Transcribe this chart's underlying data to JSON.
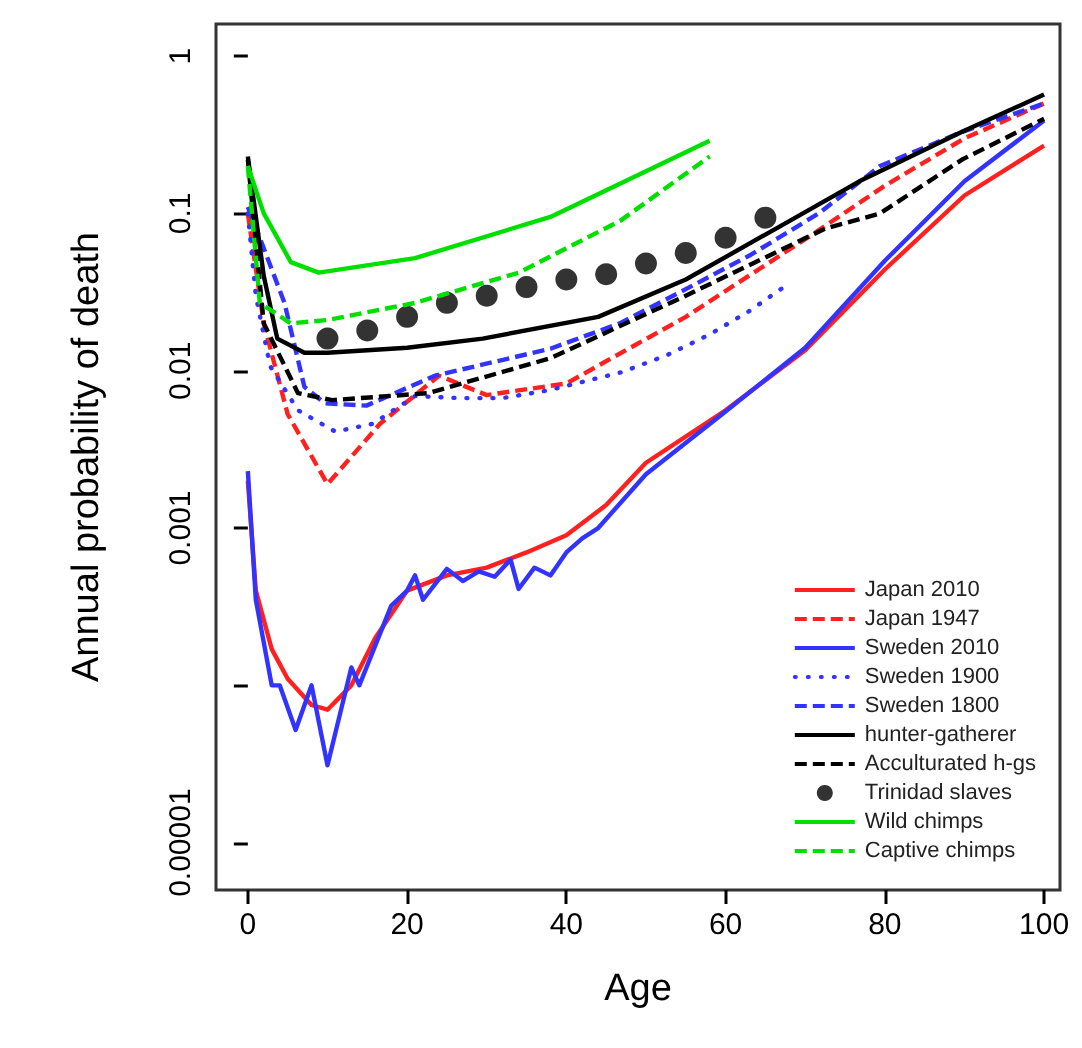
{
  "chart_data": {
    "type": "line",
    "xlabel": "Age",
    "ylabel": "Annual probability of death",
    "log": "y",
    "grid": false,
    "legend": "bottom right",
    "marker": "none",
    "xlim": [
      -4,
      102
    ],
    "xticks": [
      0,
      20,
      40,
      60,
      80,
      100
    ],
    "ylim": [
      5e-06,
      1.6
    ],
    "yticks": [
      1,
      0.1,
      0.01,
      0.001,
      {
        "value": 0.0001,
        "label": null
      },
      {
        "value": 1e-05,
        "label": "0.00001"
      }
    ],
    "series": [
      {
        "name": "Japan 2010",
        "color": "#ff2020",
        "line_style": "solid",
        "x": [
          0,
          1,
          3,
          5,
          8,
          10,
          13,
          16,
          20,
          25,
          30,
          35,
          40,
          45,
          50,
          60,
          70,
          80,
          90,
          100
        ],
        "values": [
          0.002,
          0.0004,
          0.00017,
          0.00011,
          7.5e-05,
          7e-05,
          0.0001,
          0.0002,
          0.0004,
          0.0005,
          0.00056,
          0.0007,
          0.0009,
          0.0014,
          0.0026,
          0.0056,
          0.0135,
          0.044,
          0.13,
          0.27
        ]
      },
      {
        "name": "Japan 1947",
        "color": "#ff2020",
        "line_style": "dashed",
        "x": [
          0,
          2,
          5,
          10,
          16.6,
          24,
          30,
          40,
          55,
          71,
          80,
          90,
          100
        ],
        "values": [
          0.1,
          0.02,
          0.0053,
          0.0019,
          0.0046,
          0.0093,
          0.007,
          0.0083,
          0.022,
          0.074,
          0.15,
          0.3,
          0.5
        ]
      },
      {
        "name": "Sweden 2010",
        "color": "#3333ff",
        "line_style": "solid",
        "x": [
          0,
          1,
          3,
          4,
          6,
          8,
          10,
          13,
          14,
          18,
          20,
          21,
          22,
          25,
          27,
          29,
          31,
          33,
          34,
          36,
          38,
          40,
          42,
          44,
          50,
          60,
          70,
          80,
          90,
          100
        ],
        "values": [
          0.0023,
          0.00035,
          0.0001,
          0.0001,
          5.2e-05,
          0.0001,
          3.1e-05,
          0.00013,
          0.0001,
          0.00032,
          0.0004,
          0.0005,
          0.00035,
          0.00055,
          0.00046,
          0.00053,
          0.00049,
          0.00063,
          0.00041,
          0.00056,
          0.0005,
          0.0007,
          0.00086,
          0.001,
          0.0022,
          0.0055,
          0.014,
          0.05,
          0.16,
          0.39
        ]
      },
      {
        "name": "Sweden 1900",
        "color": "#3333ff",
        "line_style": "dotted",
        "x": [
          0,
          1,
          2.8,
          6.3,
          11,
          15.7,
          21,
          26.5,
          32,
          37.7,
          47,
          52.7,
          58,
          63,
          68
        ],
        "values": [
          0.1,
          0.03,
          0.0107,
          0.0056,
          0.0041,
          0.0046,
          0.0069,
          0.0067,
          0.0067,
          0.0075,
          0.0098,
          0.0126,
          0.017,
          0.024,
          0.036
        ]
      },
      {
        "name": "Sweden 1800",
        "color": "#3333ff",
        "line_style": "dashed",
        "x": [
          0,
          2,
          4.6,
          7.1,
          9.7,
          14.9,
          23.5,
          31,
          38,
          46.7,
          55,
          63,
          71.7,
          79.4,
          89.7,
          100
        ],
        "values": [
          0.11,
          0.06,
          0.027,
          0.0079,
          0.0062,
          0.006,
          0.0093,
          0.0114,
          0.0138,
          0.02,
          0.033,
          0.054,
          0.1,
          0.2,
          0.33,
          0.5
        ]
      },
      {
        "name": "hunter-gatherer",
        "color": "#000000",
        "line_style": "solid",
        "x": [
          0,
          2,
          3.7,
          7.1,
          10,
          20,
          29.5,
          44,
          55,
          66.5,
          76.8,
          89.7,
          100
        ],
        "values": [
          0.23,
          0.04,
          0.016,
          0.013,
          0.013,
          0.014,
          0.016,
          0.022,
          0.038,
          0.081,
          0.16,
          0.33,
          0.57
        ]
      },
      {
        "name": "Acculturated h-gs",
        "color": "#000000",
        "line_style": "dashed",
        "x": [
          0,
          2,
          6.3,
          10.6,
          22.6,
          38,
          55,
          72.5,
          79.4,
          89.7,
          100
        ],
        "values": [
          0.22,
          0.02,
          0.0072,
          0.0065,
          0.0072,
          0.012,
          0.03,
          0.08,
          0.1,
          0.22,
          0.4
        ]
      },
      {
        "name": "Trinidad slaves",
        "color": "#000000",
        "type": "scatter",
        "marker": "circle",
        "x": [
          10,
          15,
          20,
          25,
          30,
          35,
          40,
          45,
          50,
          55,
          60,
          65
        ],
        "values": [
          0.016,
          0.018,
          0.022,
          0.027,
          0.03,
          0.034,
          0.038,
          0.041,
          0.048,
          0.056,
          0.07,
          0.094
        ]
      },
      {
        "name": "Wild chimps",
        "color": "#00e000",
        "line_style": "solid",
        "x": [
          0,
          2,
          5.4,
          8.9,
          21,
          38,
          58
        ],
        "values": [
          0.2,
          0.1,
          0.049,
          0.042,
          0.052,
          0.095,
          0.29
        ]
      },
      {
        "name": "Captive chimps",
        "color": "#00e000",
        "line_style": "dashed",
        "x": [
          0,
          1.5,
          5.4,
          10,
          21,
          34,
          46.8,
          58
        ],
        "values": [
          0.2,
          0.027,
          0.02,
          0.021,
          0.027,
          0.042,
          0.09,
          0.23
        ]
      }
    ]
  }
}
